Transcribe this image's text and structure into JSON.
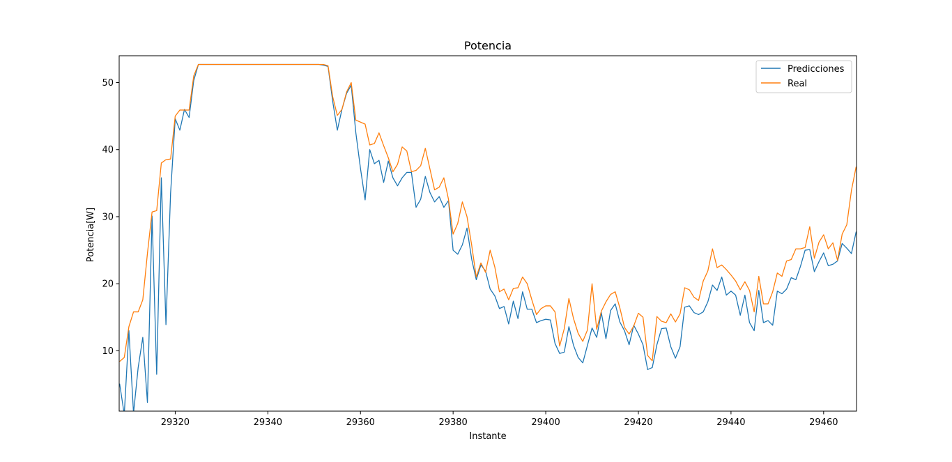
{
  "chart_data": {
    "type": "line",
    "title": "Potencia",
    "xlabel": "Instante",
    "ylabel": "Potencia[W]",
    "xlim": [
      29307.9,
      29467.1
    ],
    "ylim": [
      1.0,
      54.0
    ],
    "x_ticks": [
      29320,
      29340,
      29360,
      29380,
      29400,
      29420,
      29440,
      29460
    ],
    "y_ticks": [
      10,
      20,
      30,
      40,
      50
    ],
    "grid": false,
    "legend_position": "upper right",
    "x_start": 29308,
    "series": [
      {
        "name": "Predicciones",
        "color": "#1f77b4",
        "values": [
          5.1,
          0.5,
          13.0,
          0.7,
          7.5,
          12.0,
          2.3,
          30.1,
          6.5,
          35.8,
          13.9,
          33.5,
          44.6,
          42.9,
          46.0,
          44.8,
          50.3,
          52.7,
          52.7,
          52.7,
          52.7,
          52.7,
          52.7,
          52.7,
          52.7,
          52.7,
          52.7,
          52.7,
          52.7,
          52.7,
          52.7,
          52.7,
          52.7,
          52.7,
          52.7,
          52.7,
          52.7,
          52.7,
          52.7,
          52.7,
          52.7,
          52.7,
          52.7,
          52.7,
          52.6,
          52.4,
          47.2,
          42.9,
          46.0,
          48.4,
          49.6,
          42.5,
          37.2,
          32.5,
          40.0,
          37.9,
          38.4,
          35.1,
          38.3,
          35.8,
          34.6,
          35.8,
          36.6,
          36.6,
          31.4,
          32.6,
          36.0,
          33.6,
          32.2,
          33.0,
          31.4,
          32.4,
          25.0,
          24.4,
          25.8,
          28.3,
          23.7,
          20.6,
          22.8,
          21.9,
          19.2,
          18.2,
          16.3,
          16.6,
          14.0,
          17.4,
          14.8,
          18.8,
          16.2,
          16.2,
          14.2,
          14.5,
          14.7,
          14.6,
          11.1,
          9.6,
          9.8,
          13.6,
          10.8,
          9.0,
          8.2,
          10.8,
          13.4,
          12.0,
          15.7,
          11.8,
          16.0,
          17.0,
          14.3,
          13.0,
          10.9,
          13.8,
          12.5,
          10.9,
          7.2,
          7.5,
          10.9,
          13.3,
          13.4,
          10.6,
          8.9,
          10.6,
          16.5,
          16.7,
          15.7,
          15.4,
          15.8,
          17.3,
          19.8,
          19.0,
          21.0,
          18.3,
          18.9,
          18.3,
          15.3,
          18.3,
          14.2,
          13.0,
          19.0,
          14.2,
          14.5,
          13.8,
          18.9,
          18.5,
          19.2,
          20.9,
          20.6,
          22.6,
          25.0,
          25.1,
          21.8,
          23.3,
          24.6,
          22.7,
          22.9,
          23.4,
          26.0,
          25.3,
          24.5,
          27.7,
          28.2
        ]
      },
      {
        "name": "Real",
        "color": "#ff7f0e",
        "values": [
          8.4,
          9.0,
          13.6,
          15.8,
          15.8,
          17.6,
          24.5,
          30.7,
          30.9,
          38.0,
          38.5,
          38.6,
          45.0,
          45.9,
          45.9,
          45.9,
          51.0,
          52.7,
          52.7,
          52.7,
          52.7,
          52.7,
          52.7,
          52.7,
          52.7,
          52.7,
          52.7,
          52.7,
          52.7,
          52.7,
          52.7,
          52.7,
          52.7,
          52.7,
          52.7,
          52.7,
          52.7,
          52.7,
          52.7,
          52.7,
          52.7,
          52.7,
          52.7,
          52.7,
          52.7,
          52.5,
          47.9,
          45.1,
          46.0,
          48.6,
          50.0,
          44.4,
          44.1,
          43.8,
          40.7,
          40.9,
          42.5,
          40.6,
          38.8,
          36.7,
          37.8,
          40.4,
          39.8,
          36.7,
          36.9,
          37.6,
          40.2,
          37.1,
          34.0,
          34.4,
          35.8,
          32.6,
          27.4,
          29.0,
          32.2,
          30.0,
          25.8,
          21.0,
          23.1,
          21.7,
          25.0,
          22.5,
          18.8,
          19.2,
          17.6,
          19.3,
          19.4,
          21.0,
          20.0,
          17.6,
          15.4,
          16.3,
          16.7,
          16.7,
          15.8,
          10.7,
          13.3,
          17.8,
          14.8,
          12.6,
          11.4,
          13.1,
          20.0,
          13.2,
          15.9,
          17.3,
          18.4,
          18.8,
          16.4,
          13.5,
          12.5,
          13.7,
          15.6,
          15.0,
          9.3,
          8.5,
          15.1,
          14.4,
          14.2,
          15.5,
          14.3,
          15.5,
          19.4,
          19.1,
          18.0,
          17.5,
          20.4,
          21.9,
          25.2,
          22.4,
          22.8,
          22.1,
          21.3,
          20.4,
          19.1,
          20.3,
          19.0,
          15.8,
          21.1,
          17.0,
          17.0,
          18.8,
          21.6,
          21.1,
          23.4,
          23.6,
          25.2,
          25.2,
          25.4,
          28.5,
          23.8,
          26.2,
          27.3,
          25.2,
          26.1,
          23.5,
          27.4,
          28.8,
          33.9,
          37.4,
          37.5
        ]
      }
    ]
  }
}
